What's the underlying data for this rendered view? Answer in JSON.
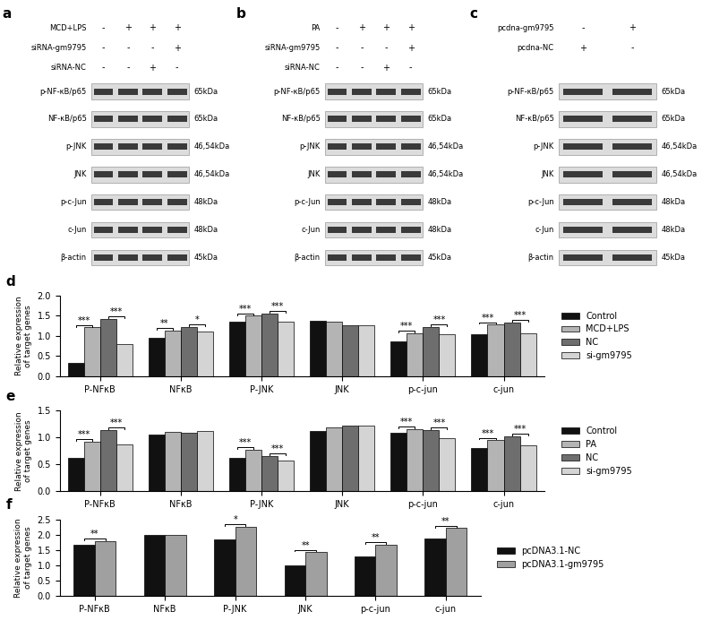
{
  "chart_data": [
    {
      "type": "bar",
      "panel": "d",
      "categories": [
        "P-NFκB",
        "NFκB",
        "P-JNK",
        "JNK",
        "p-c-jun",
        "c-jun"
      ],
      "ylabel": "Relative expression\nof target genes",
      "ylim": [
        0,
        2.0
      ],
      "yticks": [
        {
          "value": 0,
          "label": "0.0"
        },
        {
          "value": 0.5,
          "label": "0.5"
        },
        {
          "value": 1.0,
          "label": "1.0"
        },
        {
          "value": 1.5,
          "label": "1.5"
        },
        {
          "value": 2.0,
          "label": "2.0"
        }
      ],
      "legend": "center left",
      "series": [
        {
          "name": "Control",
          "color": "#111111",
          "values": [
            0.33,
            0.95,
            1.36,
            1.37,
            0.87,
            1.04
          ]
        },
        {
          "name": "MCD+LPS",
          "color": "#b4b4b4",
          "values": [
            1.21,
            1.13,
            1.5,
            1.36,
            1.06,
            1.28
          ]
        },
        {
          "name": "NC",
          "color": "#6e6e6e",
          "values": [
            1.43,
            1.22,
            1.55,
            1.27,
            1.23,
            1.33
          ]
        },
        {
          "name": "si-gm9795",
          "color": "#d4d4d4",
          "values": [
            0.79,
            1.11,
            1.36,
            1.26,
            1.05,
            1.06
          ]
        }
      ],
      "annotations": [
        {
          "category": "P-NFκB",
          "from": "Control",
          "to": "MCD+LPS",
          "text": "***"
        },
        {
          "category": "P-NFκB",
          "from": "NC",
          "to": "si-gm9795",
          "text": "***"
        },
        {
          "category": "NFκB",
          "from": "Control",
          "to": "MCD+LPS",
          "text": "**"
        },
        {
          "category": "NFκB",
          "from": "NC",
          "to": "si-gm9795",
          "text": "*"
        },
        {
          "category": "P-JNK",
          "from": "Control",
          "to": "MCD+LPS",
          "text": "***"
        },
        {
          "category": "P-JNK",
          "from": "NC",
          "to": "si-gm9795",
          "text": "***"
        },
        {
          "category": "p-c-jun",
          "from": "Control",
          "to": "MCD+LPS",
          "text": "***"
        },
        {
          "category": "p-c-jun",
          "from": "NC",
          "to": "si-gm9795",
          "text": "***"
        },
        {
          "category": "c-jun",
          "from": "Control",
          "to": "MCD+LPS",
          "text": "***"
        },
        {
          "category": "c-jun",
          "from": "NC",
          "to": "si-gm9795",
          "text": "***"
        }
      ]
    },
    {
      "type": "bar",
      "panel": "e",
      "categories": [
        "P-NFκB",
        "NFκB",
        "P-JNK",
        "JNK",
        "p-c-jun",
        "c-jun"
      ],
      "ylabel": "Relative expression\nof target genes",
      "ylim": [
        0,
        1.5
      ],
      "yticks": [
        {
          "value": 0,
          "label": "0.0"
        },
        {
          "value": 0.5,
          "label": "0.5"
        },
        {
          "value": 1.0,
          "label": "1.0"
        },
        {
          "value": 1.5,
          "label": "1.5"
        }
      ],
      "legend": "center left",
      "series": [
        {
          "name": "Control",
          "color": "#111111",
          "values": [
            0.63,
            1.05,
            0.63,
            1.12,
            1.09,
            0.8
          ]
        },
        {
          "name": "PA",
          "color": "#b4b4b4",
          "values": [
            0.93,
            1.1,
            0.78,
            1.19,
            1.16,
            0.95
          ]
        },
        {
          "name": "NC",
          "color": "#6e6e6e",
          "values": [
            1.14,
            1.09,
            0.66,
            1.22,
            1.14,
            1.02
          ]
        },
        {
          "name": "si-gm9795",
          "color": "#d4d4d4",
          "values": [
            0.88,
            1.13,
            0.57,
            1.22,
            0.99,
            0.86
          ]
        }
      ],
      "annotations": [
        {
          "category": "P-NFκB",
          "from": "Control",
          "to": "PA",
          "text": "***"
        },
        {
          "category": "P-NFκB",
          "from": "NC",
          "to": "si-gm9795",
          "text": "***"
        },
        {
          "category": "P-JNK",
          "from": "Control",
          "to": "PA",
          "text": "***"
        },
        {
          "category": "P-JNK",
          "from": "NC",
          "to": "si-gm9795",
          "text": "***"
        },
        {
          "category": "p-c-jun",
          "from": "Control",
          "to": "PA",
          "text": "***"
        },
        {
          "category": "p-c-jun",
          "from": "NC",
          "to": "si-gm9795",
          "text": "***"
        },
        {
          "category": "c-jun",
          "from": "Control",
          "to": "PA",
          "text": "***"
        },
        {
          "category": "c-jun",
          "from": "NC",
          "to": "si-gm9795",
          "text": "***"
        }
      ]
    },
    {
      "type": "bar",
      "panel": "f",
      "categories": [
        "P-NFκB",
        "NFκB",
        "P-JNK",
        "JNK",
        "p-c-jun",
        "c-jun"
      ],
      "ylabel": "Relative expression\nof target genes",
      "ylim": [
        0,
        2.5
      ],
      "yticks": [
        {
          "value": 0,
          "label": "0.0"
        },
        {
          "value": 0.5,
          "label": "0.5"
        },
        {
          "value": 1.0,
          "label": "1.0"
        },
        {
          "value": 1.5,
          "label": "1.5"
        },
        {
          "value": 2.0,
          "label": "2.0"
        },
        {
          "value": 2.5,
          "label": "2.5"
        }
      ],
      "legend": "center left",
      "series": [
        {
          "name": "pcDNA3.1-NC",
          "color": "#111111",
          "values": [
            1.68,
            1.99,
            1.86,
            0.99,
            1.28,
            1.89
          ]
        },
        {
          "name": "pcDNA3.1-gm9795",
          "color": "#a0a0a0",
          "values": [
            1.8,
            2.01,
            2.27,
            1.43,
            1.68,
            2.22
          ]
        }
      ],
      "annotations": [
        {
          "category": "P-NFκB",
          "from": "pcDNA3.1-NC",
          "to": "pcDNA3.1-gm9795",
          "text": "**"
        },
        {
          "category": "P-JNK",
          "from": "pcDNA3.1-NC",
          "to": "pcDNA3.1-gm9795",
          "text": "*"
        },
        {
          "category": "JNK",
          "from": "pcDNA3.1-NC",
          "to": "pcDNA3.1-gm9795",
          "text": "**"
        },
        {
          "category": "p-c-jun",
          "from": "pcDNA3.1-NC",
          "to": "pcDNA3.1-gm9795",
          "text": "**"
        },
        {
          "category": "c-jun",
          "from": "pcDNA3.1-NC",
          "to": "pcDNA3.1-gm9795",
          "text": "**"
        }
      ]
    }
  ],
  "blots": [
    {
      "panel": "a",
      "conditions": [
        {
          "name": "MCD+LPS",
          "signs": [
            "-",
            "+",
            "+",
            "+"
          ]
        },
        {
          "name": "siRNA-gm9795",
          "signs": [
            "-",
            "-",
            "-",
            "+"
          ]
        },
        {
          "name": "siRNA-NC",
          "signs": [
            "-",
            "-",
            "+",
            "-"
          ]
        }
      ],
      "proteins": [
        {
          "name": "p-NF-κB/p65",
          "size": "65kDa"
        },
        {
          "name": "NF-κB/p65",
          "size": "65kDa"
        },
        {
          "name": "p-JNK",
          "size": "46,54kDa"
        },
        {
          "name": "JNK",
          "size": "46,54kDa"
        },
        {
          "name": "p-c-Jun",
          "size": "48kDa"
        },
        {
          "name": "c-Jun",
          "size": "48kDa"
        },
        {
          "name": "β-actin",
          "size": "45kDa"
        }
      ]
    },
    {
      "panel": "b",
      "conditions": [
        {
          "name": "PA",
          "signs": [
            "-",
            "+",
            "+",
            "+"
          ]
        },
        {
          "name": "siRNA-gm9795",
          "signs": [
            "-",
            "-",
            "-",
            "+"
          ]
        },
        {
          "name": "siRNA-NC",
          "signs": [
            "-",
            "-",
            "+",
            "-"
          ]
        }
      ],
      "proteins": [
        {
          "name": "p-NF-κB/p65",
          "size": "65kDa"
        },
        {
          "name": "NF-κB/p65",
          "size": "65kDa"
        },
        {
          "name": "p-JNK",
          "size": "46,54kDa"
        },
        {
          "name": "JNK",
          "size": "46,54kDa"
        },
        {
          "name": "p-c-Jun",
          "size": "48kDa"
        },
        {
          "name": "c-Jun",
          "size": "48kDa"
        },
        {
          "name": "β-actin",
          "size": "45kDa"
        }
      ]
    },
    {
      "panel": "c",
      "conditions": [
        {
          "name": "pcdna-gm9795",
          "signs": [
            "-",
            "+"
          ]
        },
        {
          "name": "pcdna-NC",
          "signs": [
            "+",
            "-"
          ]
        }
      ],
      "proteins": [
        {
          "name": "p-NF-κB/p65",
          "size": "65kDa"
        },
        {
          "name": "NF-κB/p65",
          "size": "65kDa"
        },
        {
          "name": "p-JNK",
          "size": "46,54kDa"
        },
        {
          "name": "JNK",
          "size": "46,54kDa"
        },
        {
          "name": "p-c-Jun",
          "size": "48kDa"
        },
        {
          "name": "c-Jun",
          "size": "48kDa"
        },
        {
          "name": "β-actin",
          "size": "45kDa"
        }
      ]
    }
  ]
}
